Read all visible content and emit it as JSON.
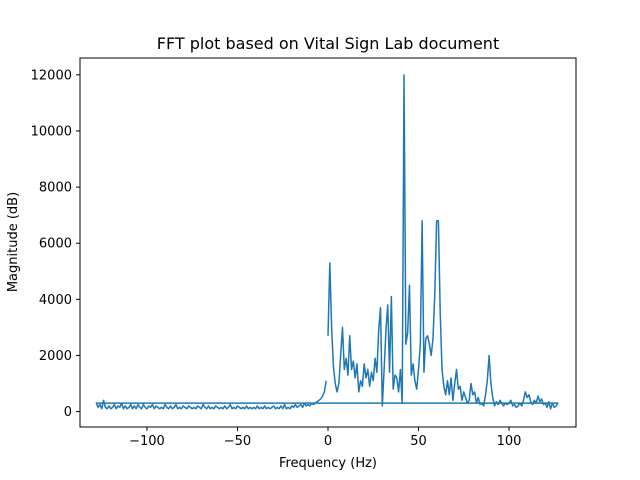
{
  "chart_data": {
    "type": "line",
    "title": "FFT plot based on Vital Sign Lab document",
    "xlabel": "Frequency (Hz)",
    "ylabel": "Magnitude (dB)",
    "xlim": [
      -137,
      137
    ],
    "ylim": [
      -550,
      12600
    ],
    "xticks": [
      -100,
      -50,
      0,
      50,
      100
    ],
    "xtick_labels": [
      "−100",
      "−50",
      "0",
      "50",
      "100"
    ],
    "yticks": [
      0,
      2000,
      4000,
      6000,
      8000,
      10000,
      12000
    ],
    "ytick_labels": [
      "0",
      "2000",
      "4000",
      "6000",
      "8000",
      "10000",
      "12000"
    ],
    "grid": false,
    "legend": "none",
    "series": [
      {
        "color": "#1f77b4",
        "points": [
          [
            0,
            2700
          ],
          [
            1,
            5300
          ],
          [
            2,
            3000
          ],
          [
            3,
            1600
          ],
          [
            4,
            1000
          ],
          [
            5,
            700
          ],
          [
            6,
            1000
          ],
          [
            7,
            2000
          ],
          [
            8,
            3000
          ],
          [
            9,
            1500
          ],
          [
            10,
            1900
          ],
          [
            11,
            1300
          ],
          [
            12,
            2700
          ],
          [
            13,
            1500
          ],
          [
            14,
            1800
          ],
          [
            15,
            1200
          ],
          [
            16,
            1700
          ],
          [
            17,
            700
          ],
          [
            18,
            1100
          ],
          [
            19,
            900
          ],
          [
            20,
            1700
          ],
          [
            21,
            1200
          ],
          [
            22,
            1500
          ],
          [
            23,
            900
          ],
          [
            24,
            1400
          ],
          [
            25,
            1100
          ],
          [
            26,
            1900
          ],
          [
            27,
            1400
          ],
          [
            28,
            2900
          ],
          [
            29,
            3700
          ],
          [
            30,
            200
          ],
          [
            31,
            1500
          ],
          [
            32,
            2900
          ],
          [
            33,
            3800
          ],
          [
            34,
            1400
          ],
          [
            35,
            4100
          ],
          [
            36,
            800
          ],
          [
            37,
            1300
          ],
          [
            38,
            1200
          ],
          [
            39,
            700
          ],
          [
            40,
            1500
          ],
          [
            41,
            300
          ],
          [
            42,
            12000
          ],
          [
            43,
            2400
          ],
          [
            44,
            2800
          ],
          [
            45,
            4500
          ],
          [
            46,
            1300
          ],
          [
            47,
            1700
          ],
          [
            48,
            1100
          ],
          [
            49,
            800
          ],
          [
            50,
            1500
          ],
          [
            51,
            2400
          ],
          [
            52,
            6800
          ],
          [
            53,
            1400
          ],
          [
            54,
            2600
          ],
          [
            55,
            2700
          ],
          [
            56,
            2400
          ],
          [
            57,
            2000
          ],
          [
            58,
            2600
          ],
          [
            59,
            4200
          ],
          [
            60,
            6800
          ],
          [
            61,
            6800
          ],
          [
            62,
            3500
          ],
          [
            63,
            1500
          ],
          [
            64,
            900
          ],
          [
            65,
            600
          ],
          [
            66,
            1100
          ],
          [
            67,
            600
          ],
          [
            68,
            1200
          ],
          [
            69,
            400
          ],
          [
            70,
            1000
          ],
          [
            71,
            1500
          ],
          [
            72,
            800
          ],
          [
            73,
            900
          ],
          [
            74,
            400
          ],
          [
            75,
            700
          ],
          [
            76,
            500
          ],
          [
            77,
            300
          ],
          [
            78,
            400
          ],
          [
            79,
            1000
          ],
          [
            80,
            600
          ],
          [
            81,
            700
          ],
          [
            82,
            300
          ],
          [
            83,
            500
          ],
          [
            84,
            250
          ],
          [
            85,
            300
          ],
          [
            86,
            200
          ],
          [
            87,
            600
          ],
          [
            88,
            1100
          ],
          [
            89,
            2000
          ],
          [
            90,
            1000
          ],
          [
            91,
            500
          ],
          [
            92,
            200
          ],
          [
            93,
            350
          ],
          [
            94,
            250
          ],
          [
            95,
            400
          ],
          [
            96,
            300
          ],
          [
            97,
            200
          ],
          [
            98,
            300
          ],
          [
            99,
            250
          ],
          [
            100,
            300
          ],
          [
            101,
            400
          ],
          [
            102,
            200
          ],
          [
            103,
            250
          ],
          [
            104,
            150
          ],
          [
            105,
            200
          ],
          [
            106,
            300
          ],
          [
            107,
            200
          ],
          [
            108,
            400
          ],
          [
            109,
            700
          ],
          [
            110,
            500
          ],
          [
            111,
            600
          ],
          [
            112,
            350
          ],
          [
            113,
            250
          ],
          [
            114,
            400
          ],
          [
            115,
            300
          ],
          [
            116,
            550
          ],
          [
            117,
            350
          ],
          [
            118,
            450
          ],
          [
            119,
            250
          ],
          [
            120,
            300
          ],
          [
            121,
            150
          ],
          [
            122,
            350
          ],
          [
            123,
            100
          ],
          [
            124,
            300
          ],
          [
            125,
            150
          ],
          [
            126,
            200
          ],
          [
            127,
            300
          ],
          [
            -128,
            300
          ],
          [
            -127,
            150
          ],
          [
            -126,
            250
          ],
          [
            -125,
            100
          ],
          [
            -124,
            400
          ],
          [
            -123,
            150
          ],
          [
            -122,
            100
          ],
          [
            -121,
            200
          ],
          [
            -120,
            100
          ],
          [
            -119,
            150
          ],
          [
            -118,
            250
          ],
          [
            -117,
            100
          ],
          [
            -116,
            200
          ],
          [
            -115,
            150
          ],
          [
            -114,
            300
          ],
          [
            -113,
            100
          ],
          [
            -112,
            200
          ],
          [
            -111,
            100
          ],
          [
            -110,
            150
          ],
          [
            -109,
            250
          ],
          [
            -108,
            100
          ],
          [
            -107,
            200
          ],
          [
            -106,
            100
          ],
          [
            -105,
            250
          ],
          [
            -104,
            150
          ],
          [
            -103,
            100
          ],
          [
            -102,
            250
          ],
          [
            -101,
            150
          ],
          [
            -100,
            100
          ],
          [
            -99,
            200
          ],
          [
            -98,
            150
          ],
          [
            -97,
            250
          ],
          [
            -96,
            100
          ],
          [
            -95,
            200
          ],
          [
            -94,
            150
          ],
          [
            -93,
            100
          ],
          [
            -92,
            150
          ],
          [
            -91,
            100
          ],
          [
            -90,
            250
          ],
          [
            -89,
            150
          ],
          [
            -88,
            100
          ],
          [
            -87,
            200
          ],
          [
            -86,
            100
          ],
          [
            -85,
            150
          ],
          [
            -84,
            250
          ],
          [
            -83,
            100
          ],
          [
            -82,
            150
          ],
          [
            -81,
            100
          ],
          [
            -80,
            200
          ],
          [
            -79,
            150
          ],
          [
            -78,
            100
          ],
          [
            -77,
            200
          ],
          [
            -76,
            150
          ],
          [
            -75,
            100
          ],
          [
            -74,
            150
          ],
          [
            -73,
            100
          ],
          [
            -72,
            200
          ],
          [
            -71,
            150
          ],
          [
            -70,
            100
          ],
          [
            -69,
            250
          ],
          [
            -68,
            150
          ],
          [
            -67,
            100
          ],
          [
            -66,
            200
          ],
          [
            -65,
            100
          ],
          [
            -64,
            150
          ],
          [
            -63,
            100
          ],
          [
            -62,
            200
          ],
          [
            -61,
            150
          ],
          [
            -60,
            100
          ],
          [
            -59,
            150
          ],
          [
            -58,
            100
          ],
          [
            -57,
            200
          ],
          [
            -56,
            100
          ],
          [
            -55,
            150
          ],
          [
            -54,
            250
          ],
          [
            -53,
            100
          ],
          [
            -52,
            150
          ],
          [
            -51,
            100
          ],
          [
            -50,
            200
          ],
          [
            -49,
            150
          ],
          [
            -48,
            100
          ],
          [
            -47,
            150
          ],
          [
            -46,
            100
          ],
          [
            -45,
            200
          ],
          [
            -44,
            100
          ],
          [
            -43,
            150
          ],
          [
            -42,
            100
          ],
          [
            -41,
            150
          ],
          [
            -40,
            100
          ],
          [
            -39,
            200
          ],
          [
            -38,
            100
          ],
          [
            -37,
            150
          ],
          [
            -36,
            100
          ],
          [
            -35,
            200
          ],
          [
            -34,
            100
          ],
          [
            -33,
            150
          ],
          [
            -32,
            100
          ],
          [
            -31,
            150
          ],
          [
            -30,
            200
          ],
          [
            -29,
            100
          ],
          [
            -28,
            150
          ],
          [
            -27,
            100
          ],
          [
            -26,
            200
          ],
          [
            -25,
            100
          ],
          [
            -24,
            250
          ],
          [
            -23,
            100
          ],
          [
            -22,
            150
          ],
          [
            -21,
            100
          ],
          [
            -20,
            200
          ],
          [
            -19,
            150
          ],
          [
            -18,
            250
          ],
          [
            -17,
            150
          ],
          [
            -16,
            200
          ],
          [
            -15,
            250
          ],
          [
            -14,
            150
          ],
          [
            -13,
            300
          ],
          [
            -12,
            200
          ],
          [
            -11,
            250
          ],
          [
            -10,
            200
          ],
          [
            -9,
            300
          ],
          [
            -8,
            250
          ],
          [
            -7,
            300
          ],
          [
            -6,
            350
          ],
          [
            -5,
            400
          ],
          [
            -4,
            450
          ],
          [
            -3,
            550
          ],
          [
            -2,
            700
          ],
          [
            -1,
            1100
          ]
        ]
      }
    ]
  }
}
